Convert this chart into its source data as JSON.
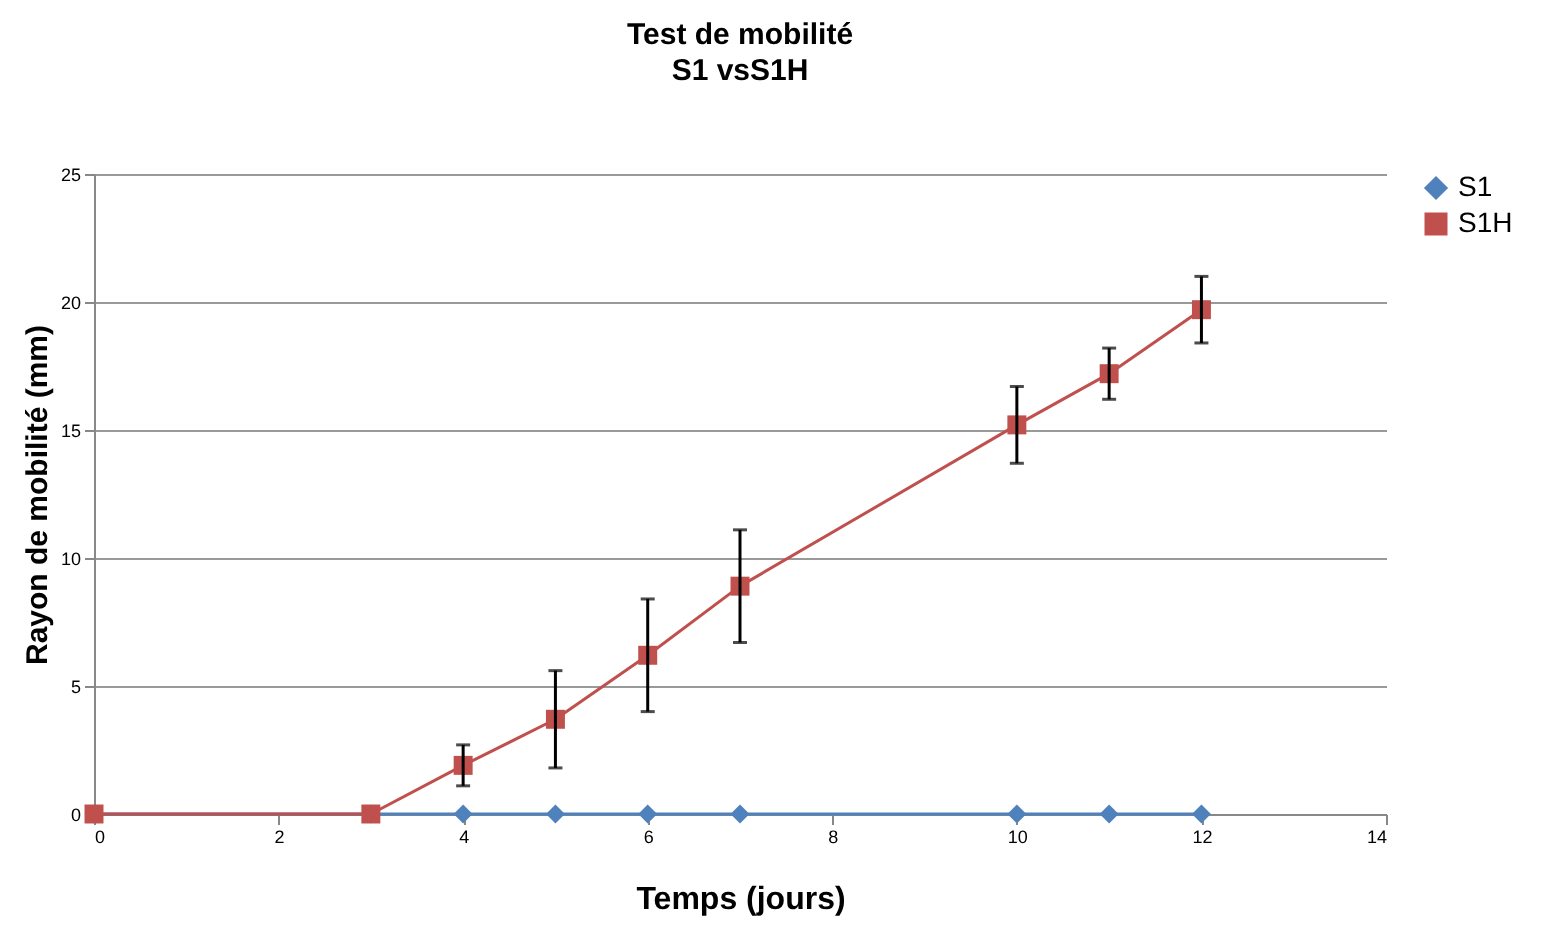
{
  "chart_data": {
    "type": "line",
    "title": "Test de mobilité",
    "subtitle": "S1 vsS1H",
    "xlabel": "Temps (jours)",
    "ylabel": "Rayon de mobilité (mm)",
    "x": [
      0,
      3,
      4,
      5,
      6,
      7,
      10,
      11,
      12
    ],
    "series": [
      {
        "name": "S1",
        "color": "#4f81bd",
        "marker": "diamond",
        "values": [
          0,
          0,
          0,
          0,
          0,
          0,
          0,
          0,
          0
        ]
      },
      {
        "name": "S1H",
        "color": "#c0504d",
        "marker": "square",
        "values": [
          0,
          0,
          1.9,
          3.7,
          6.2,
          8.9,
          15.2,
          17.2,
          19.7
        ],
        "errors": [
          null,
          null,
          0.8,
          1.9,
          2.2,
          2.2,
          1.5,
          1.0,
          1.3
        ]
      }
    ],
    "xlim": [
      0,
      14
    ],
    "xticks": [
      0,
      2,
      4,
      6,
      8,
      10,
      12,
      14
    ],
    "ylim": [
      0,
      25
    ],
    "yticks": [
      0,
      5,
      10,
      15,
      20,
      25
    ],
    "grid": "y",
    "legend": "right",
    "line_style": "solid"
  }
}
